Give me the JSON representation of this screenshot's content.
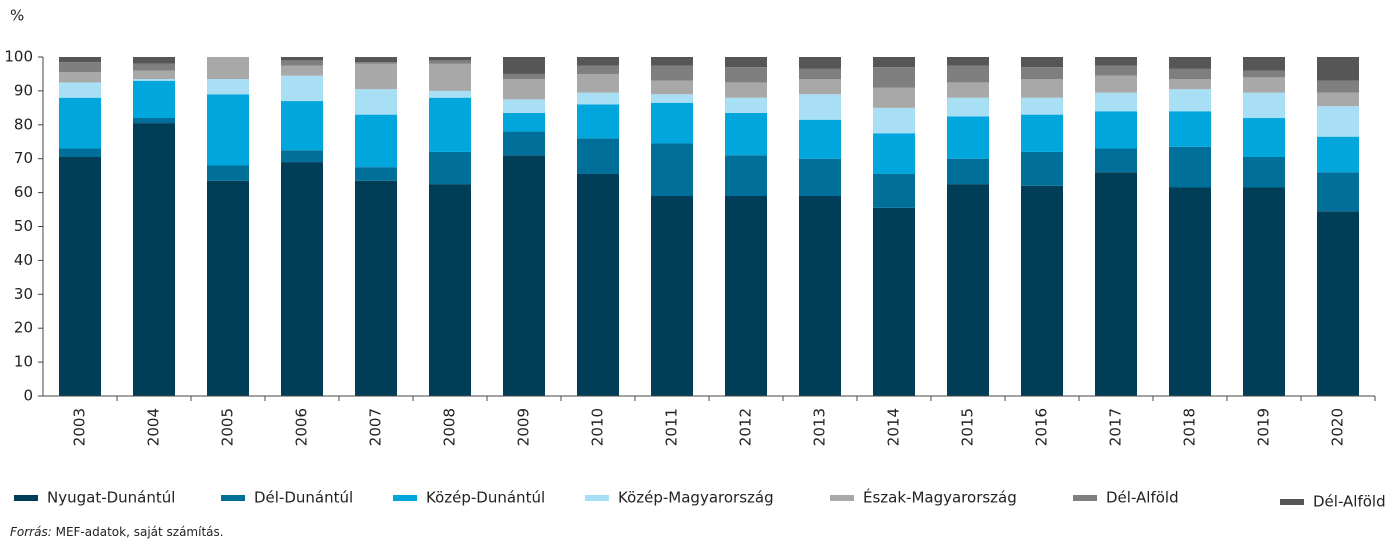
{
  "chart_data": {
    "type": "stacked_bar",
    "y_label": "%",
    "categories": [
      "2003",
      "2004",
      "2005",
      "2006",
      "2007",
      "2008",
      "2009",
      "2010",
      "2011",
      "2012",
      "2013",
      "2014",
      "2015",
      "2016",
      "2017",
      "2018",
      "2019",
      "2020"
    ],
    "series": [
      {
        "name": "Nyugat-Dunántúl",
        "color": "#003d56",
        "values": [
          70.5,
          80.5,
          63.5,
          69,
          63.5,
          62.5,
          71,
          65.5,
          59,
          59,
          59,
          55.5,
          62.5,
          62,
          66,
          61.5,
          61.5,
          54.5
        ]
      },
      {
        "name": "Dél-Dunántúl",
        "color": "#006f99",
        "values": [
          2.5,
          1.5,
          4.5,
          3.5,
          4,
          9.5,
          7,
          10.5,
          15.5,
          12,
          11,
          10,
          7.5,
          10,
          7,
          12,
          9,
          11.5
        ]
      },
      {
        "name": "Közép-Dunántúl",
        "color": "#00a6dc",
        "values": [
          15,
          11,
          21,
          14.5,
          15.5,
          16,
          5.5,
          10,
          12,
          12.5,
          11.5,
          12,
          12.5,
          11,
          11,
          10.5,
          11.5,
          10.5
        ]
      },
      {
        "name": "Közép-Magyarország",
        "color": "#a9dff4",
        "values": [
          4.5,
          0.5,
          4.5,
          7.5,
          7.5,
          2,
          4,
          3.5,
          2.5,
          4.5,
          7.5,
          7.5,
          5.5,
          5,
          5.5,
          6.5,
          7.5,
          9
        ]
      },
      {
        "name": "Észak-Magyarország",
        "color": "#a8a8a8",
        "values": [
          3,
          2.5,
          6.5,
          3,
          7.5,
          8,
          6,
          5.5,
          4,
          4.5,
          4.5,
          6,
          4.5,
          5.5,
          5,
          3,
          4.5,
          4
        ]
      },
      {
        "name": "Dél-Alföld",
        "color": "#7f7f7f",
        "values": [
          3,
          2,
          0,
          1.5,
          0.5,
          1,
          1.5,
          2.5,
          4.5,
          4.5,
          3,
          6,
          5,
          3.5,
          3,
          3,
          2,
          3.5
        ]
      },
      {
        "name": "Dél-Alföld",
        "color": "#565656",
        "values": [
          1.5,
          2,
          0,
          1,
          1.5,
          1,
          5,
          2.5,
          2.5,
          3,
          3.5,
          3,
          2.5,
          3,
          2.5,
          3.5,
          4,
          7
        ]
      }
    ],
    "ylim": [
      0,
      100
    ],
    "yticks": [
      0,
      10,
      20,
      30,
      40,
      50,
      60,
      70,
      80,
      90,
      100
    ],
    "source_label": "Forrás:",
    "source": "MEF-adatok, saját számítás."
  }
}
